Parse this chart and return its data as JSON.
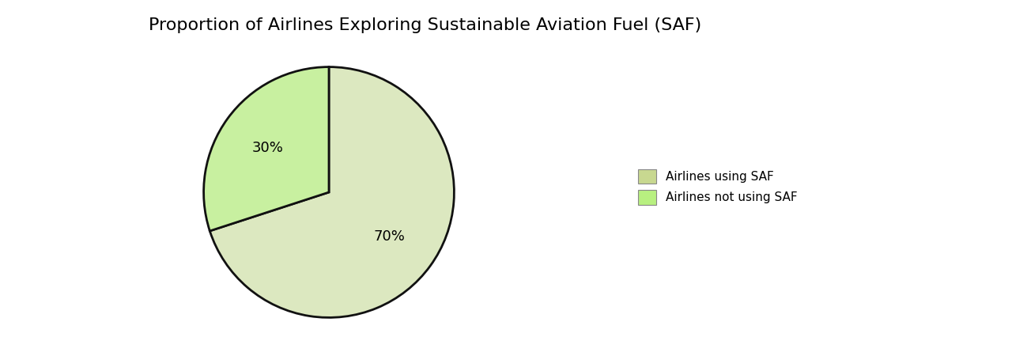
{
  "title": "Proportion of Airlines Exploring Sustainable Aviation Fuel (SAF)",
  "slices": [
    70,
    30
  ],
  "colors_pie": [
    "#dce8c0",
    "#c8f0a0"
  ],
  "legend_labels": [
    "Airlines using SAF",
    "Airlines not using SAF"
  ],
  "legend_colors": [
    "#c8d890",
    "#b8f080"
  ],
  "startangle": 90,
  "title_fontsize": 16,
  "background_color": "#ffffff",
  "edge_color": "#111111",
  "edge_width": 2.0,
  "pct_labels": [
    "70%",
    "30%"
  ],
  "pct_fontsize": 13
}
